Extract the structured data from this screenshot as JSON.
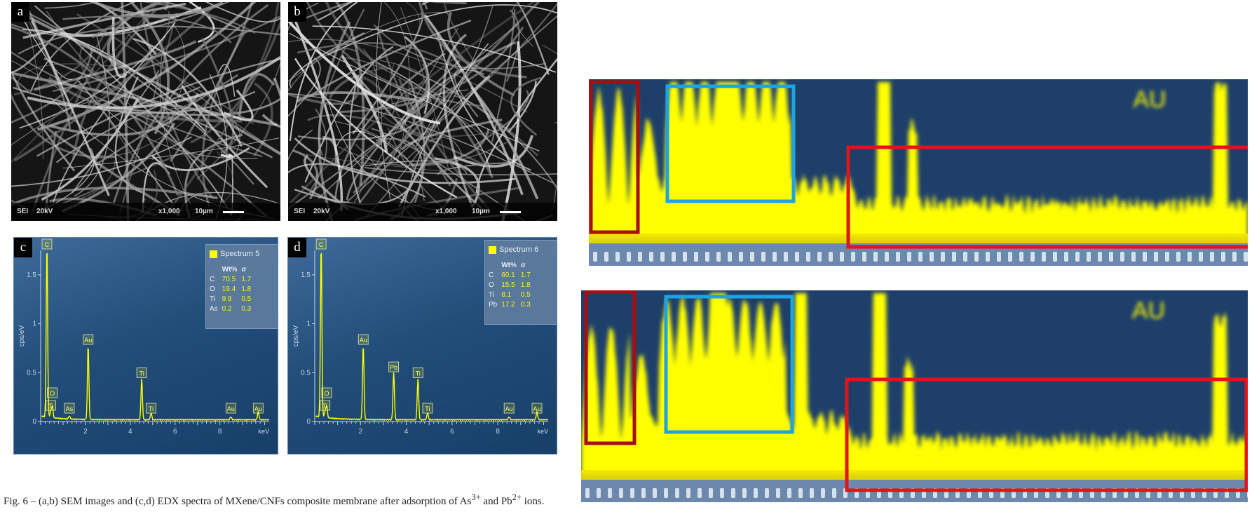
{
  "sem_panels": [
    {
      "letter": "a",
      "mode": "SEI",
      "kv": "20kV",
      "mag": "x1,000",
      "scale": "10µm"
    },
    {
      "letter": "b",
      "mode": "SEI",
      "kv": "20kV",
      "mag": "x1,000",
      "scale": "10µm"
    }
  ],
  "edx_panels": [
    {
      "letter": "c",
      "legend": {
        "spectrum": "Spectrum 5",
        "headers": [
          "",
          "Wt%",
          "σ"
        ],
        "rows": [
          [
            "C",
            "70.5",
            "1.7"
          ],
          [
            "O",
            "19.4",
            "1.8"
          ],
          [
            "Ti",
            "9.9",
            "0.5"
          ],
          [
            "As",
            "0.2",
            "0.3"
          ]
        ]
      },
      "ylabel": "cps/eV",
      "xlabel": "keV",
      "ytick_labels": [
        "0",
        "0.5",
        "1",
        "1.5"
      ],
      "xtick_labels": [
        "2",
        "4",
        "6",
        "8"
      ],
      "peak_labels": [
        "C",
        "O",
        "Ti",
        "As",
        "Au",
        "Ti",
        "Ti",
        "Au",
        "Au"
      ]
    },
    {
      "letter": "d",
      "legend": {
        "spectrum": "Spectrum 6",
        "headers": [
          "",
          "Wt%",
          "σ"
        ],
        "rows": [
          [
            "C",
            "60.1",
            "1.7"
          ],
          [
            "O",
            "15.5",
            "1.8"
          ],
          [
            "Ti",
            "8.1",
            "0.5"
          ],
          [
            "Pb",
            "17.2",
            "0.3"
          ]
        ]
      },
      "ylabel": "cps/eV",
      "xlabel": "keV",
      "ytick_labels": [
        "0",
        "0.5",
        "1",
        "1.5"
      ],
      "xtick_labels": [
        "2",
        "4",
        "6",
        "8"
      ],
      "peak_labels": [
        "C",
        "O",
        "Ti",
        "Au",
        "Pb",
        "Ti",
        "Ti",
        "Au",
        "Au"
      ]
    }
  ],
  "chart_data": [
    {
      "type": "line",
      "panel": "c",
      "xlabel": "keV",
      "ylabel": "cps/eV",
      "xlim": [
        0,
        10.2
      ],
      "ylim": [
        0,
        1.75
      ],
      "peaks": [
        {
          "element": "C",
          "x": 0.28,
          "y": 1.75
        },
        {
          "element": "O",
          "x": 0.52,
          "y": 0.12
        },
        {
          "element": "Ti",
          "x": 0.45,
          "y": 0.06
        },
        {
          "element": "As",
          "x": 1.28,
          "y": 0.03
        },
        {
          "element": "Au",
          "x": 2.12,
          "y": 0.76
        },
        {
          "element": "Ti",
          "x": 4.51,
          "y": 0.42
        },
        {
          "element": "Ti",
          "x": 4.93,
          "y": 0.07
        },
        {
          "element": "Au",
          "x": 8.49,
          "y": 0.03
        },
        {
          "element": "Au",
          "x": 9.71,
          "y": 0.08
        }
      ]
    },
    {
      "type": "line",
      "panel": "d",
      "xlabel": "keV",
      "ylabel": "cps/eV",
      "xlim": [
        0,
        10.2
      ],
      "ylim": [
        0,
        1.75
      ],
      "peaks": [
        {
          "element": "C",
          "x": 0.28,
          "y": 1.75
        },
        {
          "element": "O",
          "x": 0.52,
          "y": 0.12
        },
        {
          "element": "Ti",
          "x": 0.45,
          "y": 0.06
        },
        {
          "element": "Au",
          "x": 2.12,
          "y": 0.76
        },
        {
          "element": "Pb",
          "x": 3.45,
          "y": 0.48
        },
        {
          "element": "Ti",
          "x": 4.51,
          "y": 0.42
        },
        {
          "element": "Ti",
          "x": 4.93,
          "y": 0.07
        },
        {
          "element": "Au",
          "x": 8.49,
          "y": 0.03
        },
        {
          "element": "Au",
          "x": 9.71,
          "y": 0.08
        }
      ]
    }
  ],
  "zoom_panels": [
    {
      "label_text": "AU"
    },
    {
      "label_text": "AU"
    }
  ],
  "colors": {
    "trace": "#ffff00",
    "background": "#173f68",
    "box_red": "#e0151a",
    "box_darkred": "#a80d10",
    "box_blue": "#1ba6e3"
  },
  "caption": {
    "prefix": "Fig. 6 – (a,b) SEM images and (c,d) EDX spectra of MXene/CNFs composite membrane after adsorption of As",
    "sup1": "3+",
    "mid": " and Pb",
    "sup2": "2+",
    "suffix": " ions."
  }
}
